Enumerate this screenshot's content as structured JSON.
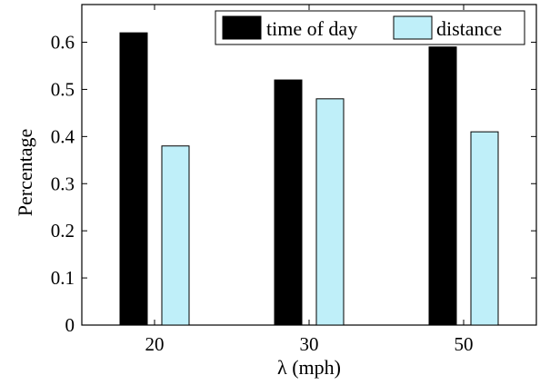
{
  "chart_data": {
    "type": "bar",
    "categories": [
      "20",
      "30",
      "50"
    ],
    "series": [
      {
        "name": "time of day",
        "values": [
          0.62,
          0.52,
          0.59
        ],
        "color": "#000000"
      },
      {
        "name": "distance",
        "values": [
          0.38,
          0.48,
          0.41
        ],
        "color": "#bfeff9"
      }
    ],
    "xlabel": "λ (mph)",
    "ylabel": "Percentage",
    "ylim": [
      0,
      0.68
    ],
    "yticks": [
      0,
      0.1,
      0.2,
      0.3,
      0.4,
      0.5,
      0.6
    ],
    "ytick_labels": [
      "0",
      "0.1",
      "0.2",
      "0.3",
      "0.4",
      "0.5",
      "0.6"
    ],
    "grid": false,
    "legend_position": "top-right"
  }
}
